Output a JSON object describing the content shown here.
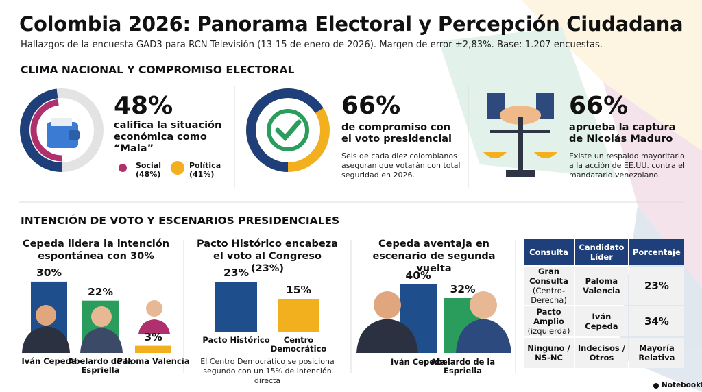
{
  "header": {
    "title": "Colombia 2026: Panorama Electoral y Percepción Ciudadana",
    "subtitle": "Hallazgos de la encuesta GAD3 para RCN Televisión (13-15 de enero de 2026). Margen de error ±2,83%. Base: 1.207 encuestas."
  },
  "section1": {
    "title": "CLIMA NACIONAL Y COMPROMISO ELECTORAL",
    "cards": [
      {
        "value": 48,
        "value_label": "48%",
        "text": "califica la situación económica como “Mala”",
        "legend": [
          {
            "label": "Social",
            "value_label": "(48%)"
          },
          {
            "label": "Política",
            "value_label": "(41%)"
          }
        ]
      },
      {
        "value": 66,
        "value_label": "66%",
        "text": "de compromiso con el voto presidencial",
        "note": "Seis de cada diez colombianos aseguran que votarán con total seguridad en 2026."
      },
      {
        "value": 66,
        "value_label": "66%",
        "text": "aprueba la captura de Nicolás Maduro",
        "note": "Existe un respaldo mayoritario a la acción de EE.UU. contra el mandatario venezolano."
      }
    ]
  },
  "section2": {
    "title": "INTENCIÓN DE VOTO Y ESCENARIOS PRESIDENCIALES",
    "charts": [
      {
        "type": "bar",
        "title": "Cepeda lidera la intención espontánea con 30%",
        "categories": [
          "Iván Cepeda",
          "Abelardo de la Espriella",
          "Paloma Valencia"
        ],
        "values": [
          30,
          22,
          3
        ],
        "value_labels": [
          "30%",
          "22%",
          "3%"
        ],
        "colors": [
          "#1f4e8c",
          "#2a9d5c",
          "#f2b01e"
        ]
      },
      {
        "type": "bar",
        "title": "Pacto Histórico encabeza el voto al Congreso (23%)",
        "categories": [
          "Pacto Histórico",
          "Centro Democrático"
        ],
        "values": [
          23,
          15
        ],
        "value_labels": [
          "23%",
          "15%"
        ],
        "colors": [
          "#1f4e8c",
          "#f2b01e"
        ],
        "note": "El Centro Democrático se posiciona segundo con un 15% de intención directa"
      },
      {
        "type": "bar",
        "title": "Cepeda aventaja en escenario de segunda vuelta",
        "categories": [
          "Iván Cepeda",
          "Abelardo de la Espriella"
        ],
        "values": [
          40,
          32
        ],
        "value_labels": [
          "40%",
          "32%"
        ],
        "colors": [
          "#1f4e8c",
          "#2a9d5c"
        ]
      }
    ],
    "table": {
      "columns": [
        "Consulta",
        "Candidato Líder",
        "Porcentaje"
      ],
      "rows": [
        {
          "consulta": "Gran Consulta",
          "detalle": "(Centro-Derecha)",
          "candidato": "Paloma Valencia",
          "porcentaje": "23%"
        },
        {
          "consulta": "Pacto Amplio",
          "detalle": "(izquierda)",
          "candidato": "Iván Cepeda",
          "porcentaje": "34%"
        },
        {
          "consulta": "Ninguno / NS-NC",
          "candidato": "Indecisos / Otros",
          "porcentaje": "Mayoría Relativa"
        }
      ]
    }
  },
  "footer": {
    "brand": "NotebookLM"
  }
}
